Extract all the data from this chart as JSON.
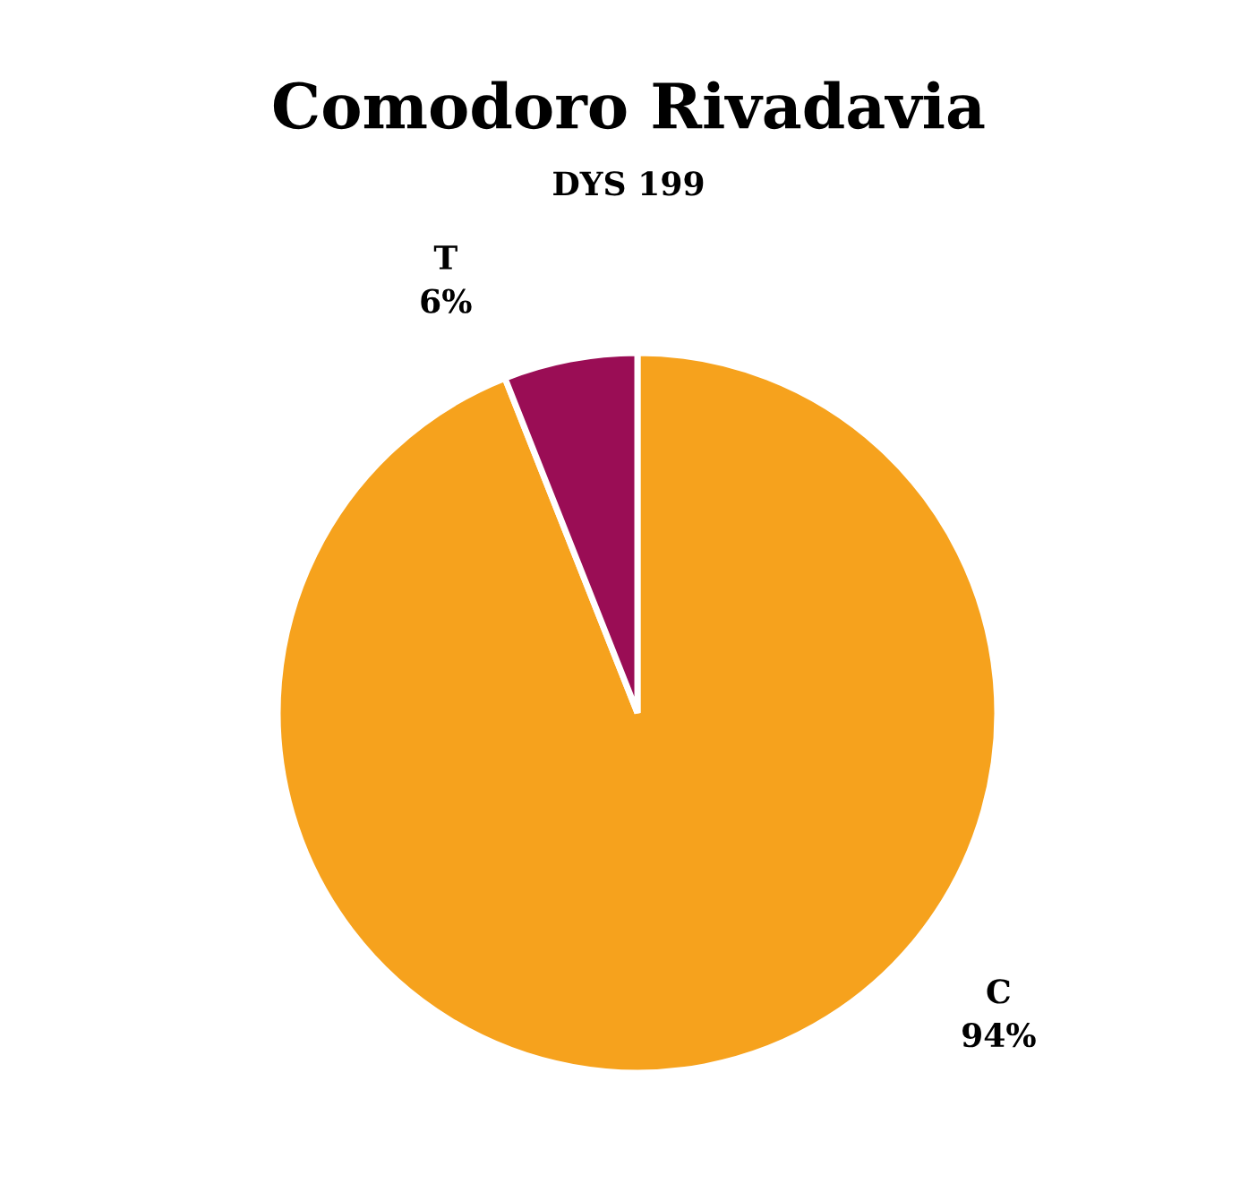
{
  "chart_data": {
    "type": "pie",
    "title": "Comodoro Rivadavia",
    "subtitle": "DYS 199",
    "categories": [
      "C",
      "T"
    ],
    "values": [
      94,
      6
    ],
    "value_labels": [
      "94%",
      "6%"
    ],
    "colors": [
      "#f6a21d",
      "#9a0d55"
    ]
  }
}
